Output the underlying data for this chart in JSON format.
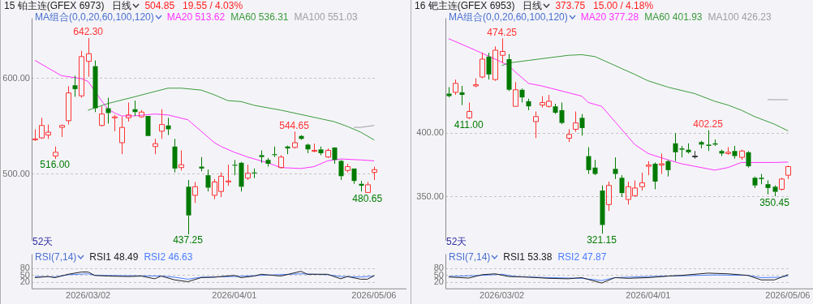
{
  "chart_data": [
    {
      "type": "candlestick",
      "title": "15 铂主连(GFEX 6973)",
      "subtitle": "日线",
      "legend_title": "MA组合(0,0,20,60,100,120)",
      "legend": "top",
      "grid": "y",
      "tick_labels": "y",
      "annotations": [
        "504.85",
        "19.55 / 4.03%",
        "52天",
        {
          "text": "642.30",
          "x": "2026/03/02",
          "y": 642.3
        },
        {
          "text": "516.00",
          "y": 516
        },
        {
          "text": "437.25",
          "y": 437.25
        },
        {
          "text": "544.65",
          "y": 544.65
        },
        {
          "text": "480.65",
          "y": 480.65
        }
      ],
      "categories": [
        null,
        null,
        null,
        null,
        null,
        null,
        null,
        null,
        "2026/03/02",
        null,
        null,
        null,
        null,
        null,
        null,
        null,
        null,
        null,
        null,
        null,
        null,
        null,
        null,
        null,
        null,
        null,
        null,
        null,
        null,
        null,
        "2026/04/01",
        null,
        null,
        null,
        null,
        null,
        null,
        null,
        null,
        null,
        null,
        null,
        null,
        null,
        null,
        null,
        null,
        null,
        null,
        null,
        null,
        "2026/05/06"
      ],
      "ohlc": [
        [
          536,
          547,
          535,
          537
        ],
        [
          538,
          559,
          537,
          551
        ],
        [
          541,
          552,
          537,
          544
        ],
        [
          519,
          529,
          516,
          523
        ],
        [
          549,
          552,
          539,
          551
        ],
        [
          556,
          592,
          552,
          585
        ],
        [
          593,
          603,
          581,
          589
        ],
        [
          582,
          629,
          580,
          623
        ],
        [
          618,
          642.3,
          602,
          626
        ],
        [
          613,
          619,
          565,
          569
        ],
        [
          551,
          571,
          550,
          563
        ],
        [
          569,
          580,
          553,
          564
        ],
        [
          559,
          562,
          545,
          560
        ],
        [
          533,
          560,
          521,
          549
        ],
        [
          559,
          575,
          555,
          562
        ],
        [
          568,
          577,
          561,
          565
        ],
        [
          560,
          567,
          559,
          565
        ],
        [
          561,
          561,
          540,
          540
        ],
        [
          529,
          537,
          521,
          532
        ],
        [
          545,
          568,
          537,
          552
        ],
        [
          551,
          559,
          541,
          547
        ],
        [
          529,
          537,
          502,
          506
        ],
        [
          507,
          525,
          504,
          510
        ],
        [
          487,
          494,
          437.25,
          457
        ],
        [
          478,
          492,
          470,
          487
        ],
        [
          508,
          518,
          503,
          506
        ],
        [
          499,
          505,
          482,
          486
        ],
        [
          478,
          495,
          474,
          492
        ],
        [
          482,
          502,
          476,
          498
        ],
        [
          492,
          510,
          488,
          493
        ],
        [
          510,
          515,
          499,
          509
        ],
        [
          512,
          513,
          482,
          487
        ],
        [
          496,
          510,
          494,
          501
        ],
        [
          502,
          506,
          496,
          501
        ],
        [
          520,
          525,
          512,
          518
        ],
        [
          515,
          517,
          508,
          511
        ],
        [
          521,
          529,
          518,
          520
        ],
        [
          507,
          520,
          506,
          518
        ],
        [
          529,
          530,
          521,
          527
        ],
        [
          528,
          544.65,
          527,
          533
        ],
        [
          540,
          541,
          536,
          537
        ],
        [
          531,
          532,
          522,
          526
        ],
        [
          524,
          532,
          523,
          525
        ],
        [
          526,
          529,
          520,
          522
        ],
        [
          518,
          527,
          517,
          525
        ],
        [
          528,
          528,
          511,
          515
        ],
        [
          514,
          515,
          494,
          498
        ],
        [
          504,
          511,
          502,
          508
        ],
        [
          506,
          506,
          490,
          493
        ],
        [
          490,
          493,
          482,
          488
        ],
        [
          481,
          492,
          480.65,
          489
        ],
        [
          502,
          508,
          494,
          504.85
        ]
      ],
      "colors": [
        "#ff3232",
        "#ff3232",
        "#ff3232",
        "#ff3232",
        "#ff3232",
        "#ff3232",
        "#007a00",
        "#ff3232",
        "#ff3232",
        "#007a00",
        "#ff3232",
        "#007a00",
        "#ff3232",
        "#ff3232",
        "#ff3232",
        "#007a00",
        "#ff3232",
        "#007a00",
        "#ff3232",
        "#ff3232",
        "#007a00",
        "#007a00",
        "#ff3232",
        "#007a00",
        "#ff3232",
        "#007a00",
        "#007a00",
        "#ff3232",
        "#ff3232",
        "#ff3232",
        "#007a00",
        "#007a00",
        "#ff3232",
        "#007a00",
        "#007a00",
        "#007a00",
        "#007a00",
        "#ff3232",
        "#007a00",
        "#ff3232",
        "#007a00",
        "#007a00",
        "#ff3232",
        "#007a00",
        "#ff3232",
        "#007a00",
        "#007a00",
        "#ff3232",
        "#007a00",
        "#007a00",
        "#ff3232",
        "#ff3232"
      ],
      "series": [
        {
          "type": "line",
          "name": "MA20 513.62",
          "color": "#ff33ff",
          "values": [
            619,
            null,
            null,
            null,
            603,
            null,
            null,
            600,
            597,
            null,
            577,
            568,
            564,
            561,
            null,
            561,
            null,
            null,
            563,
            null,
            562,
            null,
            null,
            557,
            null,
            545,
            null,
            533,
            529,
            null,
            523,
            null,
            518,
            null,
            null,
            512,
            null,
            507,
            null,
            null,
            506,
            null,
            508,
            null,
            514,
            null,
            516,
            null,
            null,
            515,
            null,
            514
          ]
        },
        {
          "type": "line",
          "name": "MA60 536.31",
          "color": "#3c9a3c",
          "values": [
            null,
            null,
            null,
            null,
            null,
            null,
            null,
            null,
            567,
            null,
            null,
            574,
            null,
            null,
            null,
            581,
            null,
            null,
            null,
            null,
            590,
            null,
            590,
            null,
            null,
            588,
            null,
            583,
            null,
            577,
            null,
            576,
            null,
            572,
            null,
            null,
            null,
            567,
            null,
            null,
            null,
            561,
            null,
            null,
            null,
            555,
            null,
            550,
            null,
            544,
            null,
            536
          ]
        },
        {
          "type": "line",
          "name": "MA100 551.03",
          "color": "#a0a0a0",
          "values": [
            null,
            null,
            null,
            null,
            null,
            null,
            null,
            null,
            null,
            null,
            null,
            null,
            null,
            null,
            null,
            null,
            null,
            null,
            null,
            null,
            null,
            null,
            null,
            null,
            null,
            null,
            null,
            null,
            null,
            null,
            null,
            null,
            null,
            null,
            null,
            null,
            null,
            null,
            null,
            null,
            null,
            null,
            null,
            null,
            null,
            null,
            null,
            null,
            549,
            549,
            550,
            551
          ]
        }
      ],
      "ylim": [
        431,
        663
      ],
      "yticks": [
        {
          "value": 500,
          "label": "500.00"
        },
        {
          "value": 600,
          "label": "600.00"
        }
      ]
    },
    {
      "type": "line",
      "legend_title": "RSI(7,14)",
      "legend": "top left",
      "grid": "y",
      "categories": [
        null,
        null,
        null,
        null,
        null,
        null,
        null,
        null,
        "2026/03/02",
        null,
        null,
        null,
        null,
        null,
        null,
        null,
        null,
        null,
        null,
        null,
        null,
        null,
        null,
        null,
        null,
        null,
        null,
        null,
        null,
        null,
        "2026/04/01",
        null,
        null,
        null,
        null,
        null,
        null,
        null,
        null,
        null,
        null,
        null,
        null,
        null,
        null,
        null,
        null,
        null,
        null,
        null,
        null,
        "2026/05/06"
      ],
      "series": [
        {
          "name": "RSI1 48.49",
          "color": "#222222",
          "values": [
            40,
            null,
            45,
            40,
            null,
            55,
            null,
            65,
            65,
            50,
            null,
            47,
            null,
            null,
            45,
            null,
            47,
            null,
            35,
            47,
            null,
            30,
            null,
            22,
            null,
            40,
            null,
            42,
            null,
            null,
            50,
            40,
            null,
            47,
            55,
            null,
            null,
            47,
            null,
            null,
            68,
            55,
            null,
            null,
            55,
            null,
            35,
            45,
            null,
            33,
            33,
            48
          ]
        },
        {
          "name": "RSI2 46.63",
          "color": "#4a7dff",
          "values": [
            45,
            null,
            null,
            43,
            null,
            53,
            null,
            null,
            57,
            50,
            null,
            null,
            null,
            null,
            null,
            null,
            null,
            null,
            null,
            47,
            null,
            42,
            null,
            33,
            null,
            42,
            null,
            null,
            null,
            null,
            45,
            null,
            null,
            null,
            50,
            null,
            null,
            null,
            null,
            null,
            57,
            null,
            null,
            null,
            53,
            null,
            45,
            null,
            null,
            43,
            null,
            47
          ]
        }
      ],
      "ylim": [
        -8,
        144
      ],
      "yticks": [
        20,
        50,
        80
      ]
    },
    {
      "type": "candlestick",
      "title": "16 钯主连(GFEX 6953)",
      "subtitle": "日线",
      "legend_title": "MA组合(0,0,20,60,100,120)",
      "legend": "top",
      "grid": "y",
      "tick_labels": "y",
      "annotations": [
        "373.75",
        "15.00 / 4.18%",
        "52天",
        {
          "text": "474.25",
          "x": "2026/03/02",
          "y": 474.25
        },
        {
          "text": "411.00",
          "y": 411
        },
        {
          "text": "321.15",
          "y": 321.15
        },
        {
          "text": "402.25",
          "y": 402.25
        },
        {
          "text": "350.45",
          "y": 350.45
        }
      ],
      "categories": [
        null,
        null,
        null,
        null,
        null,
        null,
        null,
        null,
        "2026/03/02",
        null,
        null,
        null,
        null,
        null,
        null,
        null,
        null,
        null,
        null,
        null,
        null,
        null,
        null,
        null,
        null,
        null,
        null,
        null,
        null,
        null,
        "2026/04/01",
        null,
        null,
        null,
        null,
        null,
        null,
        null,
        null,
        null,
        null,
        null,
        null,
        null,
        null,
        null,
        null,
        null,
        null,
        null,
        null,
        "2026/05/06"
      ],
      "ohlc": [
        [
          431,
          436,
          428,
          429
        ],
        [
          432,
          442,
          430,
          439
        ],
        [
          432,
          437,
          422,
          430
        ],
        [
          412,
          424,
          411,
          417
        ],
        [
          437,
          443,
          436,
          438
        ],
        [
          444,
          463,
          443,
          458
        ],
        [
          460,
          463,
          442,
          446
        ],
        [
          442,
          468,
          441,
          465
        ],
        [
          461,
          474.25,
          455,
          464
        ],
        [
          458,
          462,
          433,
          434
        ],
        [
          421,
          440,
          421,
          434
        ],
        [
          434,
          435,
          424,
          428
        ],
        [
          425,
          427,
          418,
          421
        ],
        [
          409,
          417,
          396,
          413
        ],
        [
          422,
          429,
          420,
          424
        ],
        [
          421,
          430,
          420,
          425
        ],
        [
          421,
          423,
          415,
          416
        ],
        [
          418,
          424,
          407,
          408
        ],
        [
          396,
          403,
          393,
          399
        ],
        [
          403,
          417,
          401,
          408
        ],
        [
          412,
          415,
          398,
          404
        ],
        [
          382,
          389,
          368,
          371
        ],
        [
          373,
          379,
          367,
          368
        ],
        [
          355,
          359,
          321.15,
          328
        ],
        [
          344,
          362,
          339,
          359
        ],
        [
          372,
          381,
          364,
          368
        ],
        [
          365,
          367,
          350,
          353
        ],
        [
          348,
          362,
          344,
          358
        ],
        [
          351,
          363,
          350,
          357
        ],
        [
          358,
          369,
          355,
          361
        ],
        [
          374,
          378,
          367,
          375
        ],
        [
          376,
          377,
          356,
          362
        ],
        [
          375,
          384,
          368,
          376
        ],
        [
          378,
          379,
          366,
          371
        ],
        [
          392,
          400,
          378,
          385
        ],
        [
          388,
          390,
          381,
          387
        ],
        [
          387,
          392,
          384,
          385
        ],
        [
          382,
          386,
          380,
          382
        ],
        [
          393,
          394,
          388,
          391
        ],
        [
          391,
          402.25,
          386,
          390
        ],
        [
          392,
          395,
          390,
          391
        ],
        [
          386,
          387,
          382,
          384
        ],
        [
          384,
          389,
          383,
          385
        ],
        [
          386,
          390,
          380,
          382
        ],
        [
          381,
          387,
          379,
          386
        ],
        [
          385,
          386,
          373,
          374
        ],
        [
          365,
          366,
          357,
          359
        ],
        [
          365,
          368,
          360,
          364
        ],
        [
          360,
          363,
          352,
          357
        ],
        [
          358,
          359,
          350.45,
          354
        ],
        [
          356,
          365,
          355,
          364
        ],
        [
          367,
          374.5,
          364,
          373.75
        ]
      ],
      "colors": [
        "#007a00",
        "#ff3232",
        "#007a00",
        "#ff3232",
        "#ff3232",
        "#ff3232",
        "#007a00",
        "#ff3232",
        "#ff3232",
        "#007a00",
        "#ff3232",
        "#007a00",
        "#007a00",
        "#ff3232",
        "#ff3232",
        "#ff3232",
        "#007a00",
        "#007a00",
        "#ff3232",
        "#ff3232",
        "#007a00",
        "#007a00",
        "#007a00",
        "#007a00",
        "#ff3232",
        "#007a00",
        "#007a00",
        "#ff3232",
        "#ff3232",
        "#ff3232",
        "#ff3232",
        "#007a00",
        "#ff3232",
        "#007a00",
        "#007a00",
        "#007a00",
        "#007a00",
        "#333333",
        "#007a00",
        "#007a00",
        "#007a00",
        "#007a00",
        "#ff3232",
        "#007a00",
        "#ff3232",
        "#007a00",
        "#007a00",
        "#007a00",
        "#007a00",
        "#007a00",
        "#ff3232",
        "#ff3232"
      ],
      "series": [
        {
          "type": "line",
          "name": "MA20 377.28",
          "color": "#ff33ff",
          "values": [
            474,
            null,
            null,
            null,
            465,
            null,
            null,
            458,
            null,
            453,
            448,
            null,
            439,
            null,
            437,
            null,
            null,
            433,
            null,
            null,
            429,
            424,
            null,
            421,
            null,
            409,
            null,
            397,
            391,
            null,
            384,
            null,
            null,
            379,
            null,
            376,
            null,
            374,
            null,
            null,
            371,
            null,
            373,
            null,
            377,
            null,
            null,
            null,
            null,
            377,
            null,
            377.3
          ]
        },
        {
          "type": "line",
          "name": "MA60 401.93",
          "color": "#3c9a3c",
          "values": [
            null,
            null,
            null,
            null,
            null,
            null,
            null,
            null,
            453,
            455,
            null,
            null,
            457,
            null,
            null,
            459,
            null,
            null,
            461,
            null,
            461.5,
            null,
            460,
            null,
            null,
            453,
            null,
            null,
            446,
            null,
            441,
            null,
            null,
            436,
            null,
            null,
            null,
            431,
            null,
            null,
            425,
            null,
            422,
            null,
            418,
            null,
            413,
            null,
            null,
            407,
            null,
            401.9
          ]
        },
        {
          "type": "line",
          "name": "MA100 426.23",
          "color": "#a0a0a0",
          "values": [
            null,
            null,
            null,
            null,
            null,
            null,
            null,
            null,
            null,
            null,
            null,
            null,
            null,
            null,
            null,
            null,
            null,
            null,
            null,
            null,
            null,
            null,
            null,
            null,
            null,
            null,
            null,
            null,
            null,
            null,
            null,
            null,
            null,
            null,
            null,
            null,
            null,
            null,
            null,
            null,
            null,
            null,
            null,
            null,
            null,
            null,
            null,
            null,
            426.3,
            426.2,
            426.2,
            426.2
          ]
        }
      ],
      "ylim": [
        316,
        490
      ],
      "yticks": [
        {
          "value": 350,
          "label": "350.00"
        },
        {
          "value": 400,
          "label": "400.00"
        }
      ]
    },
    {
      "type": "line",
      "legend_title": "RSI(7,14)",
      "legend": "top left",
      "grid": "y",
      "categories": [
        null,
        null,
        null,
        null,
        null,
        null,
        null,
        null,
        "2026/03/02",
        null,
        null,
        null,
        null,
        null,
        null,
        null,
        null,
        null,
        null,
        null,
        null,
        null,
        null,
        null,
        null,
        null,
        null,
        null,
        null,
        null,
        "2026/04/01",
        null,
        null,
        null,
        null,
        null,
        null,
        null,
        null,
        null,
        null,
        null,
        null,
        null,
        null,
        null,
        null,
        null,
        null,
        null,
        null,
        "2026/05/06"
      ],
      "series": [
        {
          "name": "RSI1 53.38",
          "color": "#222222",
          "values": [
            43,
            null,
            null,
            38,
            null,
            53,
            null,
            57,
            null,
            45,
            null,
            null,
            42,
            null,
            null,
            37,
            null,
            null,
            35,
            null,
            40,
            null,
            null,
            16,
            null,
            40,
            null,
            37,
            null,
            null,
            40,
            null,
            null,
            47,
            null,
            50,
            null,
            null,
            null,
            60,
            null,
            null,
            57,
            null,
            null,
            50,
            null,
            30,
            null,
            30,
            null,
            53
          ]
        },
        {
          "name": "RSI2 47.87",
          "color": "#4a7dff",
          "values": [
            45,
            null,
            null,
            null,
            null,
            50,
            null,
            null,
            55,
            null,
            45,
            null,
            null,
            null,
            null,
            40,
            null,
            null,
            null,
            null,
            37,
            null,
            null,
            27,
            null,
            40,
            null,
            null,
            null,
            null,
            45,
            null,
            null,
            null,
            null,
            48,
            null,
            null,
            null,
            null,
            52,
            null,
            null,
            null,
            null,
            50,
            null,
            40,
            null,
            null,
            42,
            48
          ]
        }
      ],
      "ylim": [
        -8,
        144
      ],
      "yticks": [
        20,
        50,
        80
      ]
    }
  ]
}
